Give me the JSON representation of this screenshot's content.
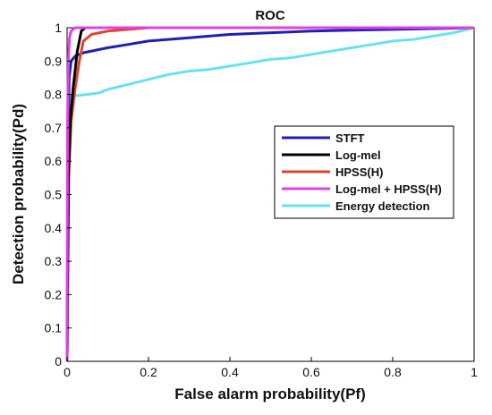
{
  "chart_data": {
    "type": "line",
    "title": "ROC",
    "xlabel": "False alarm probability(Pf)",
    "ylabel": "Detection probability(Pd)",
    "xlim": [
      0,
      1
    ],
    "ylim": [
      0,
      1
    ],
    "x_ticks": [
      "0",
      "0.2",
      "0.4",
      "0.6",
      "0.8",
      "1"
    ],
    "y_ticks": [
      "0",
      "0.1",
      "0.2",
      "0.3",
      "0.4",
      "0.5",
      "0.6",
      "0.7",
      "0.8",
      "0.9",
      "1"
    ],
    "grid": false,
    "legend_position": "right-middle",
    "series": [
      {
        "name": "STFT",
        "color": "#1f1fb4",
        "points": [
          [
            0,
            0
          ],
          [
            0.002,
            0.6
          ],
          [
            0.005,
            0.85
          ],
          [
            0.01,
            0.9
          ],
          [
            0.02,
            0.915
          ],
          [
            0.04,
            0.925
          ],
          [
            0.06,
            0.93
          ],
          [
            0.1,
            0.94
          ],
          [
            0.15,
            0.95
          ],
          [
            0.2,
            0.96
          ],
          [
            0.3,
            0.97
          ],
          [
            0.4,
            0.98
          ],
          [
            0.5,
            0.985
          ],
          [
            0.6,
            0.99
          ],
          [
            0.8,
            0.995
          ],
          [
            1,
            1
          ]
        ]
      },
      {
        "name": "Log-mel",
        "color": "#000000",
        "points": [
          [
            0,
            0
          ],
          [
            0.003,
            0.55
          ],
          [
            0.008,
            0.72
          ],
          [
            0.015,
            0.82
          ],
          [
            0.025,
            0.93
          ],
          [
            0.035,
            0.99
          ],
          [
            0.045,
            1.0
          ],
          [
            1,
            1
          ]
        ]
      },
      {
        "name": "HPSS(H)",
        "color": "#e0442a",
        "points": [
          [
            0,
            0
          ],
          [
            0.004,
            0.55
          ],
          [
            0.01,
            0.72
          ],
          [
            0.02,
            0.82
          ],
          [
            0.03,
            0.9
          ],
          [
            0.04,
            0.96
          ],
          [
            0.06,
            0.98
          ],
          [
            0.1,
            0.99
          ],
          [
            0.15,
            0.995
          ],
          [
            0.2,
            1.0
          ],
          [
            1,
            1
          ]
        ]
      },
      {
        "name": "Log-mel + HPSS(H)",
        "color": "#e040e6",
        "points": [
          [
            0,
            0
          ],
          [
            0.001,
            0.7
          ],
          [
            0.003,
            0.9
          ],
          [
            0.006,
            0.97
          ],
          [
            0.01,
            0.99
          ],
          [
            0.02,
            1.0
          ],
          [
            1,
            1
          ]
        ]
      },
      {
        "name": "Energy detection",
        "color": "#66e3ee",
        "points": [
          [
            0,
            0
          ],
          [
            0.002,
            0.5
          ],
          [
            0.004,
            0.75
          ],
          [
            0.006,
            0.79
          ],
          [
            0.01,
            0.795
          ],
          [
            0.05,
            0.8
          ],
          [
            0.08,
            0.805
          ],
          [
            0.1,
            0.815
          ],
          [
            0.15,
            0.83
          ],
          [
            0.2,
            0.845
          ],
          [
            0.25,
            0.86
          ],
          [
            0.3,
            0.87
          ],
          [
            0.35,
            0.875
          ],
          [
            0.4,
            0.885
          ],
          [
            0.45,
            0.895
          ],
          [
            0.5,
            0.905
          ],
          [
            0.55,
            0.91
          ],
          [
            0.6,
            0.92
          ],
          [
            0.65,
            0.93
          ],
          [
            0.7,
            0.94
          ],
          [
            0.75,
            0.95
          ],
          [
            0.8,
            0.96
          ],
          [
            0.85,
            0.965
          ],
          [
            0.9,
            0.975
          ],
          [
            0.95,
            0.985
          ],
          [
            1,
            1
          ]
        ]
      }
    ]
  }
}
